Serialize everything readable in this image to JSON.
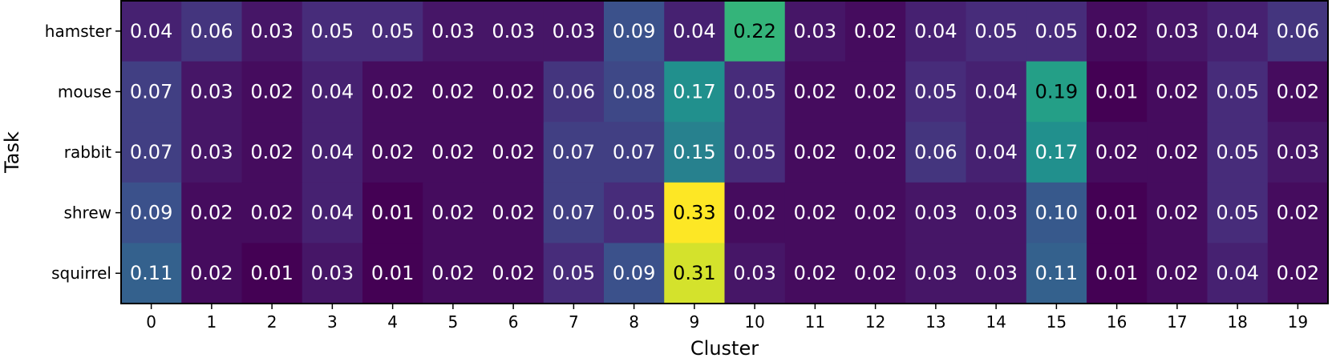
{
  "chart_data": {
    "type": "heatmap",
    "xlabel": "Cluster",
    "ylabel": "Task",
    "x_categories": [
      "0",
      "1",
      "2",
      "3",
      "4",
      "5",
      "6",
      "7",
      "8",
      "9",
      "10",
      "11",
      "12",
      "13",
      "14",
      "15",
      "16",
      "17",
      "18",
      "19"
    ],
    "y_categories": [
      "hamster",
      "mouse",
      "rabbit",
      "shrew",
      "squirrel"
    ],
    "values": [
      [
        0.04,
        0.06,
        0.03,
        0.05,
        0.05,
        0.03,
        0.03,
        0.03,
        0.09,
        0.04,
        0.22,
        0.03,
        0.02,
        0.04,
        0.05,
        0.05,
        0.02,
        0.03,
        0.04,
        0.06
      ],
      [
        0.07,
        0.03,
        0.02,
        0.04,
        0.02,
        0.02,
        0.02,
        0.06,
        0.08,
        0.17,
        0.05,
        0.02,
        0.02,
        0.05,
        0.04,
        0.19,
        0.01,
        0.02,
        0.05,
        0.02
      ],
      [
        0.07,
        0.03,
        0.02,
        0.04,
        0.02,
        0.02,
        0.02,
        0.07,
        0.07,
        0.15,
        0.05,
        0.02,
        0.02,
        0.06,
        0.04,
        0.17,
        0.02,
        0.02,
        0.05,
        0.03
      ],
      [
        0.09,
        0.02,
        0.02,
        0.04,
        0.01,
        0.02,
        0.02,
        0.07,
        0.05,
        0.33,
        0.02,
        0.02,
        0.02,
        0.03,
        0.03,
        0.1,
        0.01,
        0.02,
        0.05,
        0.02
      ],
      [
        0.11,
        0.02,
        0.01,
        0.03,
        0.01,
        0.02,
        0.02,
        0.05,
        0.09,
        0.31,
        0.03,
        0.02,
        0.02,
        0.03,
        0.03,
        0.11,
        0.01,
        0.02,
        0.04,
        0.02
      ]
    ],
    "value_format": "2 decimals",
    "colormap": "viridis",
    "vmin": 0.01,
    "vmax": 0.33,
    "grid": false,
    "legend": "none"
  }
}
